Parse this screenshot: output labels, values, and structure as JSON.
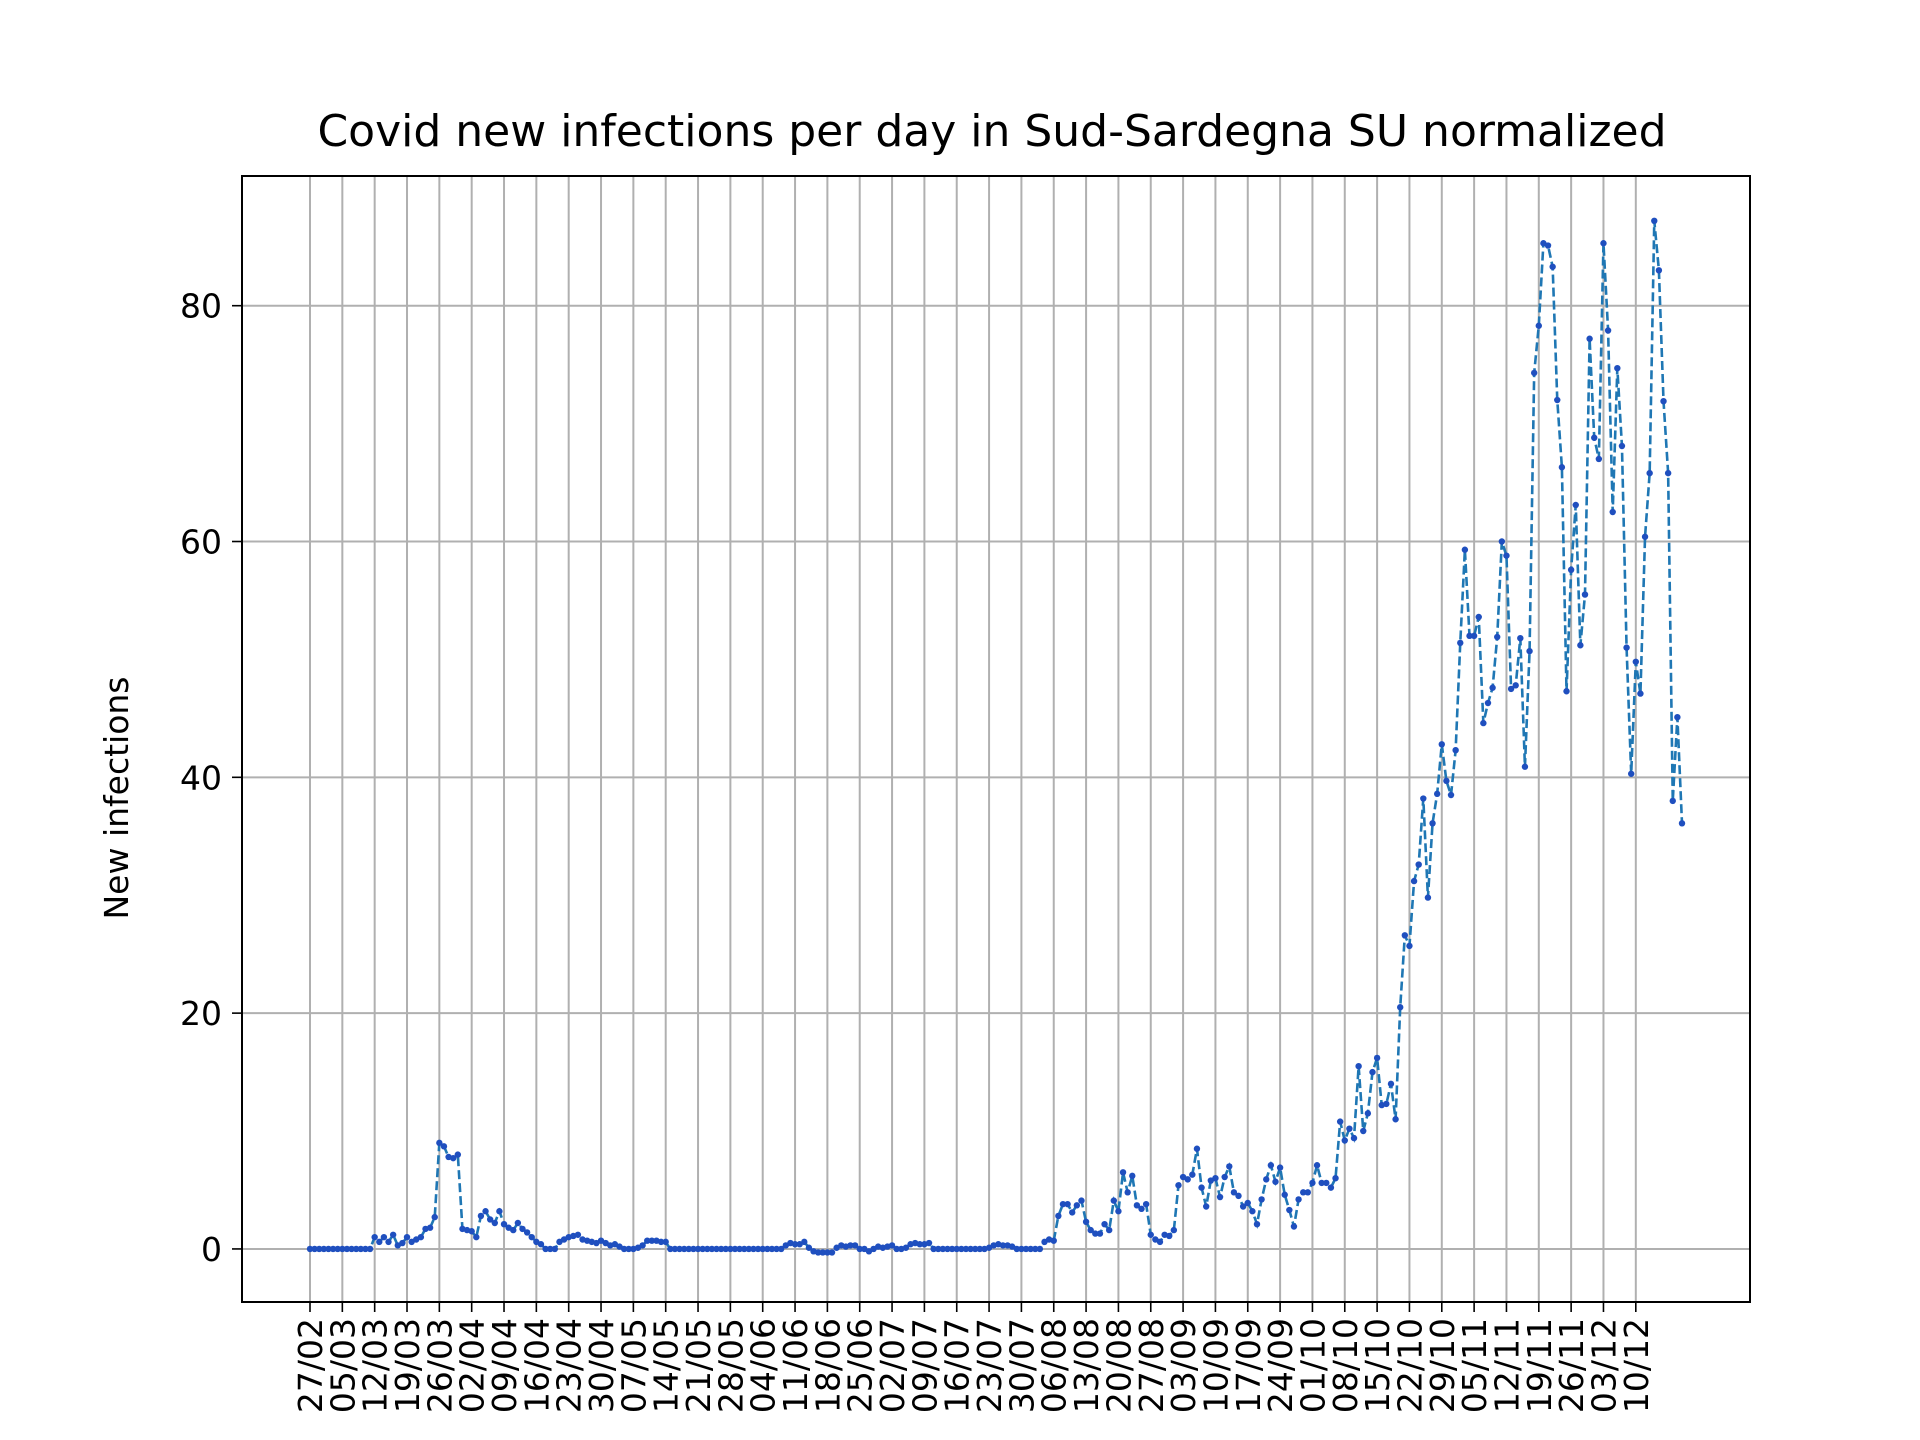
{
  "chart_data": {
    "type": "line",
    "title": "Covid new infections per day in Sud-Sardegna SU normalized",
    "xlabel": "",
    "ylabel": "New infections",
    "ylim": [
      -4.5,
      91
    ],
    "yticks": [
      0,
      20,
      40,
      60,
      80
    ],
    "grid": true,
    "line_style": "dashed",
    "line_color": "#1f77b4",
    "marker_color": "#1f4fbf",
    "x_tick_labels": [
      "27/02",
      "05/03",
      "12/03",
      "19/03",
      "26/03",
      "02/04",
      "09/04",
      "16/04",
      "23/04",
      "30/04",
      "07/05",
      "14/05",
      "21/05",
      "28/05",
      "04/06",
      "11/06",
      "18/06",
      "25/06",
      "02/07",
      "09/07",
      "16/07",
      "23/07",
      "30/07",
      "06/08",
      "13/08",
      "20/08",
      "27/08",
      "03/09",
      "10/09",
      "17/09",
      "24/09",
      "01/10",
      "08/10",
      "15/10",
      "22/10",
      "29/10",
      "05/11",
      "12/11",
      "19/11",
      "26/11",
      "03/12",
      "10/12"
    ],
    "series": [
      {
        "values": [
          0,
          0,
          0,
          0,
          0,
          0,
          0,
          0,
          0,
          0,
          0,
          0,
          0,
          0,
          1,
          0.6,
          1,
          0.6,
          1.2,
          0.3,
          0.5,
          1,
          0.6,
          0.8,
          1,
          1.7,
          1.8,
          2.7,
          9,
          8.7,
          7.8,
          7.7,
          8,
          1.7,
          1.6,
          1.5,
          1,
          2.8,
          3.2,
          2.5,
          2.2,
          3.2,
          2.1,
          1.8,
          1.6,
          2.2,
          1.7,
          1.4,
          1,
          0.6,
          0.4,
          0,
          0,
          0,
          0.6,
          0.8,
          1,
          1.1,
          1.2,
          0.8,
          0.7,
          0.6,
          0.5,
          0.7,
          0.5,
          0.3,
          0.4,
          0.2,
          0,
          0,
          0,
          0.1,
          0.3,
          0.7,
          0.7,
          0.7,
          0.6,
          0.6,
          0,
          0,
          0,
          0,
          0,
          0,
          0,
          0,
          0,
          0,
          0,
          0,
          0,
          0,
          0,
          0,
          0,
          0,
          0,
          0,
          0,
          0,
          0,
          0,
          0,
          0.3,
          0.5,
          0.4,
          0.4,
          0.6,
          0.1,
          -0.2,
          -0.3,
          -0.3,
          -0.3,
          -0.3,
          0.1,
          0.3,
          0.2,
          0.3,
          0.3,
          0,
          0,
          -0.2,
          0,
          0.2,
          0.1,
          0.2,
          0.3,
          0,
          0,
          0.1,
          0.4,
          0.5,
          0.4,
          0.4,
          0.5,
          0,
          0,
          0,
          0,
          0,
          0,
          0,
          0,
          0,
          0,
          0,
          0,
          0.1,
          0.3,
          0.4,
          0.3,
          0.3,
          0.2,
          0,
          0,
          0,
          0,
          0,
          0,
          0.6,
          0.8,
          0.7,
          2.8,
          3.8,
          3.8,
          3.1,
          3.7,
          4.1,
          2.3,
          1.6,
          1.3,
          1.3,
          2.1,
          1.6,
          4.1,
          3.2,
          6.5,
          4.8,
          6.2,
          3.7,
          3.4,
          3.8,
          1.2,
          0.8,
          0.6,
          1.2,
          1.1,
          1.6,
          5.4,
          6.1,
          5.9,
          6.3,
          8.5,
          5.2,
          3.6,
          5.8,
          6,
          4.4,
          6.1,
          7,
          4.8,
          4.5,
          3.6,
          3.9,
          3.2,
          2.1,
          4.2,
          5.9,
          7.1,
          5.7,
          6.9,
          4.6,
          3.3,
          1.9,
          4.2,
          4.8,
          4.8,
          5.6,
          7.1,
          5.6,
          5.6,
          5.2,
          6,
          10.8,
          9.2,
          10.2,
          9.4,
          15.5,
          10,
          11.5,
          15,
          16.2,
          12.2,
          12.3,
          14,
          11,
          20.5,
          26.6,
          25.7,
          31.2,
          32.6,
          38.2,
          29.8,
          36.1,
          38.6,
          42.8,
          39.7,
          38.5,
          42.3,
          51.4,
          59.3,
          52,
          52,
          53.6,
          44.6,
          46.3,
          47.6,
          51.9,
          60,
          58.8,
          47.5,
          47.8,
          51.8,
          40.9,
          50.7,
          74.3,
          78.3,
          85.3,
          85.1,
          83.3,
          72,
          66.3,
          47.3,
          57.6,
          63.1,
          51.2,
          55.5,
          77.2,
          68.8,
          67,
          85.3,
          77.9,
          62.5,
          74.7,
          68.1,
          51,
          40.3,
          49.8,
          47.1,
          60.4,
          65.8,
          87.2,
          83,
          71.9,
          65.8,
          38,
          45.1,
          36.1
        ]
      }
    ]
  }
}
